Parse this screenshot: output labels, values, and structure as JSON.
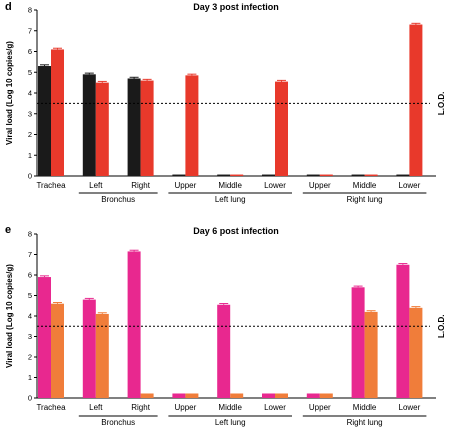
{
  "chart_data": [
    {
      "type": "bar",
      "panel_letter": "d",
      "title": "Day 3 post infection",
      "ylabel": "Viral load (Log 10 copies/g)",
      "ylim": [
        0,
        8
      ],
      "yticks": [
        0,
        1,
        2,
        3,
        4,
        5,
        6,
        7,
        8
      ],
      "lod_value": 3.5,
      "lod_label": "L.O.D.",
      "categories": [
        "Trachea",
        "Left",
        "Right",
        "Upper",
        "Middle",
        "Lower",
        "Upper",
        "Middle",
        "Lower"
      ],
      "groups": [
        {
          "label": "Bronchus",
          "start": 1,
          "end": 2
        },
        {
          "label": "Left lung",
          "start": 3,
          "end": 5
        },
        {
          "label": "Right lung",
          "start": 6,
          "end": 8
        }
      ],
      "series": [
        {
          "color": "#1a1a1a",
          "values": [
            5.3,
            4.9,
            4.7,
            0.07,
            0.07,
            0.07,
            0.07,
            0.07,
            0.07
          ]
        },
        {
          "color": "#e8392b",
          "values": [
            6.1,
            4.5,
            4.6,
            4.85,
            0.07,
            4.55,
            0.07,
            0.07,
            7.3
          ]
        }
      ]
    },
    {
      "type": "bar",
      "panel_letter": "e",
      "title": "Day 6 post infection",
      "ylabel": "Viral load (Log 10 copies/g)",
      "ylim": [
        0,
        8
      ],
      "yticks": [
        0,
        1,
        2,
        3,
        4,
        5,
        6,
        7,
        8
      ],
      "lod_value": 3.5,
      "lod_label": "L.O.D.",
      "categories": [
        "Trachea",
        "Left",
        "Right",
        "Upper",
        "Middle",
        "Lower",
        "Upper",
        "Middle",
        "Lower"
      ],
      "groups": [
        {
          "label": "Bronchus",
          "start": 1,
          "end": 2
        },
        {
          "label": "Left lung",
          "start": 3,
          "end": 5
        },
        {
          "label": "Right lung",
          "start": 6,
          "end": 8
        }
      ],
      "series": [
        {
          "color": "#e8288f",
          "values": [
            5.9,
            4.8,
            7.15,
            0.22,
            4.55,
            0.22,
            0.22,
            5.4,
            6.5
          ]
        },
        {
          "color": "#f07d3a",
          "values": [
            4.6,
            4.1,
            0.22,
            0.22,
            0.22,
            0.22,
            0.22,
            4.2,
            4.4
          ]
        }
      ]
    }
  ]
}
